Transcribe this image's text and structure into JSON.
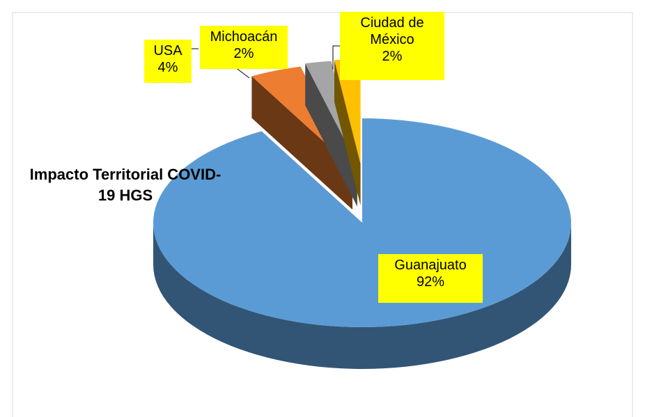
{
  "chart_data": {
    "type": "pie3d",
    "title": "Impacto Territorial COVID-19  HGS",
    "categories": [
      "Guanajuato",
      "USA",
      "Michoacán",
      "Ciudad de México"
    ],
    "values": [
      92,
      4,
      2,
      2
    ],
    "value_labels": [
      "92%",
      "4%",
      "2%",
      "2%"
    ],
    "colors": [
      "#5b9bd5",
      "#ed7d31",
      "#a5a5a5",
      "#ffc000"
    ]
  }
}
